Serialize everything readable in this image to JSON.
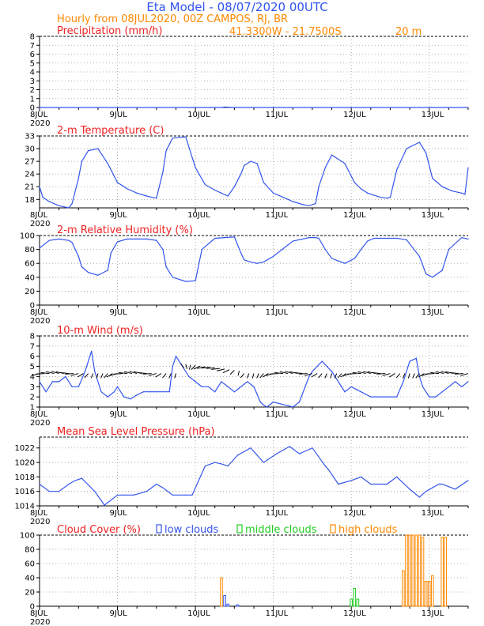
{
  "header": {
    "title": "Eta Model - 08/07/2020 00UTC",
    "subtitle": "Hourly from 08JUL2020, 00Z  CAMPOS, RJ, BR",
    "coords": "41.3300W - 21.7500S",
    "elevation": "20  m"
  },
  "colors": {
    "title": "#3355ee",
    "subtitle": "#ff8800",
    "panel_title": "#ee2222",
    "line": "#3355ee",
    "arrow": "#000000",
    "low": "#3355ee",
    "middle": "#22cc22",
    "high": "#ff8800"
  },
  "x_axis": {
    "first_label": "8JUL",
    "year_label": "2020",
    "day_labels": [
      "8JUL",
      "9JUL",
      "10JUL",
      "11JUL",
      "12JUL",
      "13JUL"
    ],
    "hours_total": 132
  },
  "chart_data": [
    {
      "id": "precip",
      "type": "line",
      "title": "Precipitation (mm/h)",
      "ylim": [
        0,
        8
      ],
      "yticks": [
        "0",
        "1",
        "2",
        "3",
        "4",
        "5",
        "6",
        "7",
        "8"
      ],
      "x_hours": [
        0,
        56,
        57,
        60,
        132
      ],
      "values": [
        0,
        0,
        0.05,
        0,
        0
      ]
    },
    {
      "id": "temp",
      "type": "line",
      "title": "2-m Temperature (C)",
      "ylim": [
        16,
        33
      ],
      "yticks": [
        "18",
        "21",
        "24",
        "27",
        "30",
        "33"
      ],
      "x_hours": [
        0,
        1,
        3,
        6,
        9,
        10,
        12,
        13,
        15,
        18,
        21,
        24,
        27,
        30,
        33,
        34,
        36,
        38,
        39,
        41,
        45,
        48,
        51,
        54,
        56,
        58,
        60,
        62,
        63,
        65,
        67,
        69,
        72,
        75,
        78,
        81,
        83,
        85,
        86,
        88,
        90,
        94,
        97,
        99,
        101,
        103,
        105,
        107,
        108,
        110,
        113,
        117,
        119,
        121,
        124,
        127,
        130,
        131,
        132
      ],
      "values": [
        21,
        18.5,
        17.5,
        16.5,
        16,
        17,
        23,
        27,
        29.5,
        30,
        26.5,
        22,
        20.5,
        19.5,
        18.8,
        18.6,
        18.3,
        24.5,
        29.5,
        32.5,
        32.8,
        25.5,
        21.5,
        20.2,
        19.5,
        18.8,
        21,
        24,
        26,
        27,
        26.5,
        22,
        19.5,
        18.5,
        17.5,
        16.8,
        16.5,
        17,
        21,
        25.5,
        28.5,
        26.5,
        22,
        20.5,
        19.5,
        19,
        18.5,
        18.3,
        18.5,
        25,
        30,
        31.5,
        29,
        23,
        21,
        20,
        19.5,
        19.2,
        25.5
      ]
    },
    {
      "id": "rh",
      "type": "line",
      "title": "2-m Relative Humidity (%)",
      "ylim": [
        0,
        100
      ],
      "yticks": [
        "0",
        "20",
        "40",
        "60",
        "80",
        "100"
      ],
      "x_hours": [
        0,
        3,
        6,
        9,
        10,
        12,
        13,
        15,
        18,
        21,
        22,
        24,
        27,
        30,
        33,
        36,
        38,
        39,
        41,
        45,
        48,
        50,
        54,
        57,
        60,
        62,
        63,
        65,
        67,
        69,
        72,
        78,
        83,
        85,
        86,
        88,
        90,
        94,
        97,
        99,
        101,
        103,
        105,
        110,
        113,
        117,
        119,
        121,
        124,
        126,
        130,
        132
      ],
      "values": [
        82,
        93,
        95,
        93,
        90,
        70,
        55,
        47,
        43,
        50,
        75,
        91,
        95,
        95,
        95,
        93,
        80,
        55,
        40,
        34,
        35,
        80,
        96,
        97,
        98,
        75,
        65,
        62,
        60,
        62,
        70,
        92,
        97,
        97,
        96,
        80,
        67,
        60,
        67,
        80,
        92,
        96,
        96,
        96,
        94,
        70,
        45,
        40,
        50,
        80,
        97,
        95
      ]
    },
    {
      "id": "wind",
      "type": "line",
      "title": "10-m Wind (m/s)",
      "ylim": [
        1,
        8
      ],
      "yticks": [
        "1",
        "2",
        "3",
        "4",
        "5",
        "6",
        "7",
        "8"
      ],
      "x_hours": [
        0,
        2,
        4,
        6,
        8,
        10,
        12,
        14,
        16,
        17,
        19,
        21,
        23,
        24,
        26,
        28,
        30,
        32,
        34,
        36,
        40,
        41,
        42,
        44,
        46,
        48,
        50,
        52,
        54,
        56,
        58,
        60,
        64,
        66,
        68,
        69,
        70,
        72,
        78,
        80,
        83,
        84,
        87,
        90,
        94,
        96,
        99,
        102,
        104,
        106,
        108,
        110,
        112,
        114,
        116,
        117,
        118,
        120,
        122,
        124,
        126,
        128,
        130,
        132
      ],
      "values": [
        3.5,
        2.5,
        3.5,
        3.5,
        4,
        3,
        3,
        4.5,
        6.5,
        4.5,
        2.5,
        2,
        2.5,
        3,
        2,
        1.8,
        2.2,
        2.5,
        2.5,
        2.5,
        2.5,
        5,
        6,
        5,
        4,
        3.5,
        3,
        3,
        2.5,
        3.5,
        3,
        2.5,
        3.5,
        3,
        1.5,
        1.2,
        1,
        1.5,
        1,
        1.5,
        4,
        4.5,
        5.5,
        4.5,
        2.5,
        3,
        2.5,
        2,
        2,
        2,
        2,
        2,
        3.5,
        5.5,
        5.8,
        4,
        3,
        2,
        2,
        2.5,
        3,
        3.5,
        3,
        3.5
      ]
    },
    {
      "id": "mslp",
      "type": "line",
      "title": "Mean Sea Level Pressure (hPa)",
      "ylim": [
        1014,
        1023.5
      ],
      "yticks": [
        "1014",
        "1016",
        "1018",
        "1020",
        "1022"
      ],
      "x_hours": [
        0,
        3,
        5,
        6,
        9,
        11,
        13,
        17,
        20,
        24,
        26,
        29,
        33,
        36,
        38,
        41,
        45,
        47,
        51,
        54,
        56,
        58,
        61,
        65,
        67,
        69,
        73,
        77,
        80,
        84,
        88,
        89,
        92,
        96,
        99,
        102,
        105,
        107,
        110,
        114,
        117,
        119,
        121,
        123,
        124,
        128,
        132
      ],
      "values": [
        1017,
        1016,
        1016,
        1016,
        1017,
        1017.5,
        1017.8,
        1016,
        1014.1,
        1015.5,
        1015.5,
        1015.5,
        1016,
        1017,
        1016.5,
        1015.5,
        1015.5,
        1015.5,
        1019.5,
        1020,
        1019.8,
        1019.5,
        1021,
        1022,
        1021,
        1020,
        1021.2,
        1022.2,
        1021.2,
        1022,
        1019.5,
        1019,
        1017,
        1017.5,
        1018,
        1017,
        1017,
        1017,
        1018,
        1016.3,
        1015.2,
        1016,
        1016.5,
        1017,
        1017,
        1016.3,
        1017.5
      ]
    },
    {
      "id": "cloud",
      "type": "bar",
      "title": "Cloud Cover (%)",
      "ylim": [
        0,
        100
      ],
      "yticks": [
        "0",
        "20",
        "40",
        "60",
        "80",
        "100"
      ],
      "legend": [
        "low clouds",
        "middle clouds",
        "high clouds"
      ],
      "series": [
        {
          "name": "low clouds",
          "x_hours": [
            57,
            58,
            61
          ],
          "values": [
            15,
            3,
            2
          ]
        },
        {
          "name": "middle clouds",
          "x_hours": [
            96,
            97,
            98
          ],
          "values": [
            10,
            25,
            10
          ]
        },
        {
          "name": "high clouds",
          "x_hours": [
            56,
            112,
            113,
            114,
            115,
            116,
            117,
            118,
            119,
            120,
            121,
            124,
            125
          ],
          "values": [
            40,
            50,
            100,
            100,
            100,
            100,
            100,
            97,
            35,
            35,
            43,
            97,
            97
          ]
        }
      ]
    }
  ]
}
